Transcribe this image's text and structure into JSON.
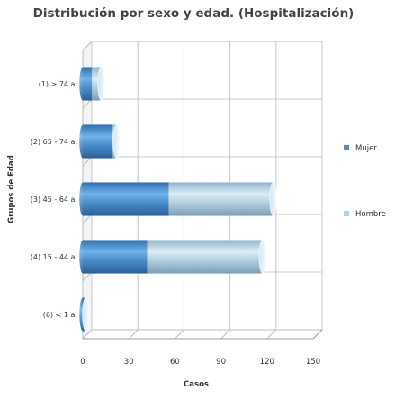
{
  "chart_data": {
    "type": "bar",
    "orientation": "horizontal",
    "stacked": true,
    "title": "Distribución por sexo y edad. (Hospitalización)",
    "xlabel": "Casos",
    "ylabel": "Grupos de Edad",
    "categories": [
      "(1) > 74 a.",
      "(2) 65 - 74 a.",
      "(3) 45 - 64 a.",
      "(4) 15 - 44 a.",
      "(6) < 1 a."
    ],
    "series": [
      {
        "name": "Mujer",
        "values": [
          6,
          19,
          56,
          42,
          1
        ],
        "color": "#4a8fcb"
      },
      {
        "name": "Hombre",
        "values": [
          6,
          3,
          68,
          75,
          1
        ],
        "color": "#a8d4f0"
      }
    ],
    "xlim": [
      0,
      150
    ],
    "xticks": [
      0,
      30,
      60,
      90,
      120,
      150
    ],
    "grid": true,
    "legend_position": "right"
  }
}
